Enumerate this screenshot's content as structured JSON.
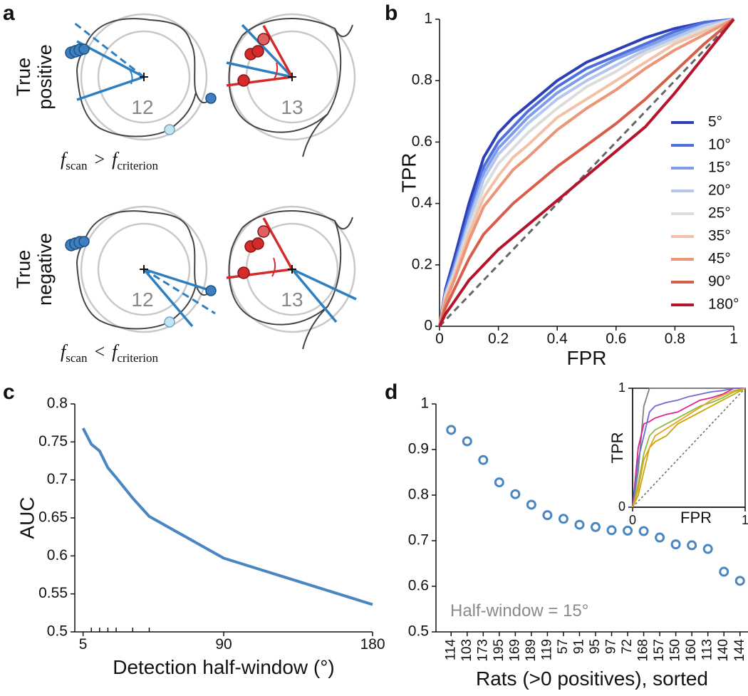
{
  "panel_labels": [
    "a",
    "b",
    "c",
    "d"
  ],
  "diagram": {
    "rows": [
      {
        "label": [
          "True",
          "positive"
        ],
        "sessions": [
          "12",
          "13"
        ],
        "condition": {
          "lhs": "f",
          "lhs_sub": "scan",
          "op": ">",
          "rhs": "f",
          "rhs_sub": "criterion"
        }
      },
      {
        "label": [
          "True",
          "negative"
        ],
        "sessions": [
          "12",
          "13"
        ],
        "condition": {
          "lhs": "f",
          "lhs_sub": "scan",
          "op": "<",
          "rhs": "f",
          "rhs_sub": "criterion"
        }
      }
    ]
  },
  "chart_data": [
    {
      "type": "line",
      "xlabel": "FPR",
      "ylabel": "TPR",
      "x": [
        0,
        0.02,
        0.05,
        0.1,
        0.15,
        0.2,
        0.25,
        0.3,
        0.4,
        0.5,
        0.6,
        0.7,
        0.8,
        0.9,
        1
      ],
      "xlim": [
        0,
        1
      ],
      "ylim": [
        0,
        1
      ],
      "xticks": [
        0,
        0.2,
        0.4,
        0.6,
        0.8,
        1
      ],
      "yticks": [
        0,
        0.2,
        0.4,
        0.6,
        0.8,
        1
      ],
      "legend": "lower right",
      "chance_line": true,
      "series": [
        {
          "name": "5°",
          "color": "#2b3fb8",
          "values": [
            0,
            0.12,
            0.22,
            0.4,
            0.55,
            0.63,
            0.68,
            0.72,
            0.8,
            0.86,
            0.9,
            0.94,
            0.97,
            0.99,
            1
          ]
        },
        {
          "name": "10°",
          "color": "#4f6fdc",
          "values": [
            0,
            0.11,
            0.2,
            0.37,
            0.52,
            0.6,
            0.65,
            0.7,
            0.78,
            0.84,
            0.88,
            0.92,
            0.96,
            0.99,
            1
          ]
        },
        {
          "name": "15°",
          "color": "#7d9cea",
          "values": [
            0,
            0.11,
            0.19,
            0.35,
            0.5,
            0.58,
            0.63,
            0.68,
            0.76,
            0.82,
            0.87,
            0.91,
            0.95,
            0.98,
            1
          ]
        },
        {
          "name": "20°",
          "color": "#b2c6ef",
          "values": [
            0,
            0.1,
            0.18,
            0.34,
            0.48,
            0.56,
            0.61,
            0.66,
            0.74,
            0.8,
            0.85,
            0.9,
            0.94,
            0.98,
            1
          ]
        },
        {
          "name": "25°",
          "color": "#dcdcdc",
          "values": [
            0,
            0.1,
            0.17,
            0.32,
            0.45,
            0.53,
            0.58,
            0.63,
            0.71,
            0.78,
            0.83,
            0.89,
            0.93,
            0.97,
            1
          ]
        },
        {
          "name": "35°",
          "color": "#f3c0a8",
          "values": [
            0,
            0.09,
            0.16,
            0.3,
            0.42,
            0.49,
            0.55,
            0.59,
            0.68,
            0.74,
            0.8,
            0.86,
            0.92,
            0.96,
            1
          ]
        },
        {
          "name": "45°",
          "color": "#ec9577",
          "values": [
            0,
            0.08,
            0.15,
            0.28,
            0.39,
            0.45,
            0.51,
            0.55,
            0.64,
            0.71,
            0.77,
            0.84,
            0.9,
            0.95,
            1
          ]
        },
        {
          "name": "90°",
          "color": "#d85e4b",
          "values": [
            0,
            0.06,
            0.12,
            0.22,
            0.3,
            0.35,
            0.4,
            0.44,
            0.52,
            0.59,
            0.66,
            0.74,
            0.83,
            0.92,
            1
          ]
        },
        {
          "name": "180°",
          "color": "#b5142c",
          "values": [
            0,
            0.04,
            0.08,
            0.15,
            0.2,
            0.25,
            0.29,
            0.33,
            0.41,
            0.49,
            0.57,
            0.65,
            0.76,
            0.88,
            1
          ]
        }
      ]
    },
    {
      "type": "line",
      "xlabel": "Detection half-window (°)",
      "ylabel": "AUC",
      "x": [
        5,
        10,
        15,
        20,
        25,
        35,
        45,
        90,
        180
      ],
      "values": [
        0.768,
        0.747,
        0.738,
        0.716,
        0.703,
        0.676,
        0.652,
        0.597,
        0.536
      ],
      "color": "#4a86c0",
      "xlim": [
        0,
        180
      ],
      "ylim": [
        0.5,
        0.8
      ],
      "xticks": [
        5,
        90,
        180
      ],
      "xminorticks": [
        10,
        15,
        20,
        25,
        35,
        45
      ],
      "yticks": [
        0.5,
        0.55,
        0.6,
        0.65,
        0.7,
        0.75,
        0.8
      ]
    },
    {
      "type": "scatter",
      "xlabel": "Rats (>0 positives), sorted",
      "annotation": "Half-window = 15°",
      "categories": [
        "114",
        "103",
        "173",
        "195",
        "169",
        "189",
        "119",
        "57",
        "91",
        "95",
        "97",
        "72",
        "168",
        "157",
        "150",
        "160",
        "113",
        "140",
        "144"
      ],
      "values": [
        0.943,
        0.918,
        0.877,
        0.828,
        0.802,
        0.779,
        0.756,
        0.748,
        0.735,
        0.73,
        0.723,
        0.722,
        0.721,
        0.707,
        0.692,
        0.69,
        0.682,
        0.632,
        0.612
      ],
      "color": "#4a86c0",
      "marker": "open-circle",
      "ylim": [
        0.5,
        1
      ],
      "yticks": [
        0.5,
        0.6,
        0.7,
        0.8,
        0.9,
        1
      ]
    },
    {
      "type": "line",
      "xlabel": "FPR",
      "ylabel": "TPR",
      "inset": true,
      "chance_line": true,
      "x": [
        0,
        0.05,
        0.1,
        0.15,
        0.2,
        0.3,
        0.4,
        0.5,
        0.6,
        0.7,
        0.8,
        0.9,
        1
      ],
      "xlim": [
        0,
        1
      ],
      "ylim": [
        0,
        1
      ],
      "xticks": [
        0,
        1
      ],
      "yticks": [
        0,
        1
      ],
      "series": [
        {
          "color": "#7f7f7f",
          "values": [
            0,
            0.3,
            0.85,
            1,
            1,
            1,
            1,
            1,
            1,
            1,
            1,
            1,
            1
          ]
        },
        {
          "color": "#e0218a",
          "values": [
            0,
            0.5,
            0.7,
            0.72,
            0.75,
            0.78,
            0.8,
            0.85,
            0.9,
            0.92,
            0.95,
            1,
            1
          ]
        },
        {
          "color": "#8bbd3c",
          "values": [
            0,
            0.2,
            0.45,
            0.6,
            0.65,
            0.7,
            0.75,
            0.8,
            0.85,
            0.88,
            0.92,
            0.97,
            1
          ]
        },
        {
          "color": "#c8a800",
          "values": [
            0,
            0.1,
            0.3,
            0.5,
            0.55,
            0.6,
            0.7,
            0.75,
            0.8,
            0.85,
            0.9,
            0.95,
            1
          ]
        },
        {
          "color": "#6b6bd0",
          "values": [
            0,
            0.4,
            0.6,
            0.8,
            0.85,
            0.88,
            0.9,
            0.93,
            0.95,
            0.97,
            0.98,
            1,
            1
          ]
        },
        {
          "color": "#e8a020",
          "values": [
            0,
            0.15,
            0.4,
            0.5,
            0.6,
            0.66,
            0.72,
            0.78,
            0.84,
            0.9,
            0.94,
            0.98,
            1
          ]
        }
      ]
    }
  ]
}
